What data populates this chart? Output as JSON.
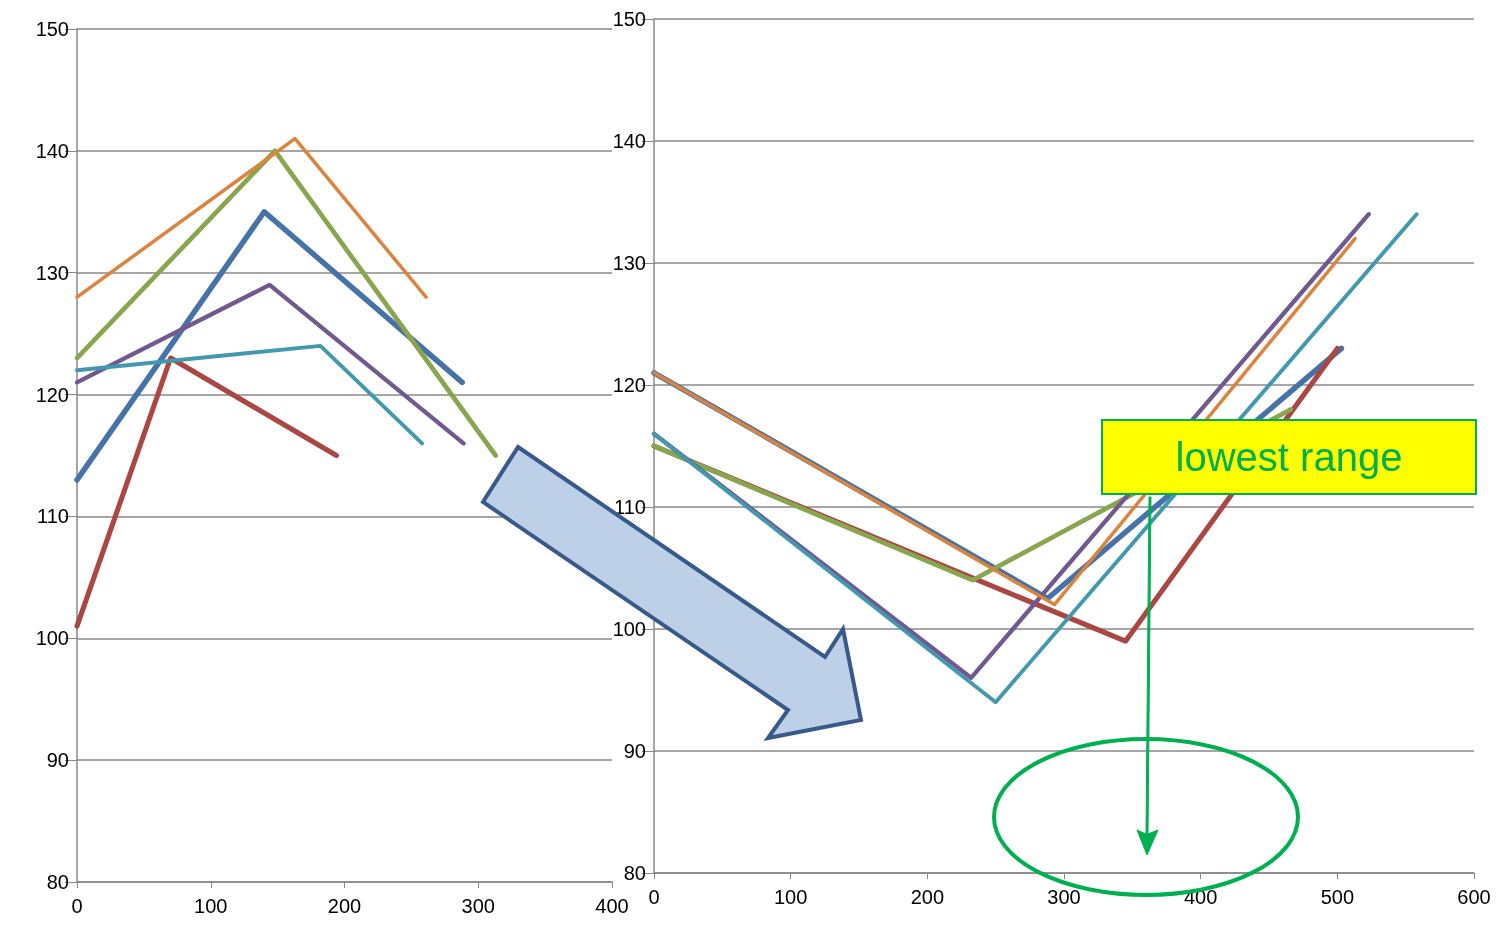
{
  "chart_data": [
    {
      "type": "line",
      "xlim": [
        0,
        400
      ],
      "xticks": [
        0,
        100,
        200,
        300,
        400
      ],
      "ylim": [
        80,
        150
      ],
      "yticks": [
        80,
        90,
        100,
        110,
        120,
        130,
        140,
        150
      ],
      "grid": "y",
      "marker": "none",
      "line_style": "solid",
      "series": [
        {
          "color": "#4572a7",
          "x": [
            0,
            140,
            288
          ],
          "values": [
            113,
            135,
            121
          ]
        },
        {
          "color": "#aa4643",
          "x": [
            0,
            70,
            194
          ],
          "values": [
            101,
            123,
            115
          ]
        },
        {
          "color": "#89a54e",
          "x": [
            0,
            148,
            313
          ],
          "values": [
            123,
            140,
            115
          ]
        },
        {
          "color": "#71588f",
          "x": [
            0,
            144,
            289
          ],
          "values": [
            121,
            129,
            116
          ]
        },
        {
          "color": "#4198af",
          "x": [
            0,
            182,
            258
          ],
          "values": [
            122,
            124,
            116
          ]
        },
        {
          "color": "#db843d",
          "x": [
            0,
            163,
            261
          ],
          "values": [
            128,
            141,
            128
          ]
        }
      ]
    },
    {
      "type": "line",
      "xlim": [
        0,
        600
      ],
      "xticks": [
        0,
        100,
        200,
        300,
        400,
        500,
        600
      ],
      "ylim": [
        80,
        150
      ],
      "yticks": [
        80,
        90,
        100,
        110,
        120,
        130,
        140,
        150
      ],
      "grid": "y",
      "marker": "none",
      "line_style": "solid",
      "annotations": [
        "lowest range"
      ],
      "series": [
        {
          "color": "#4572a7",
          "x": [
            0,
            288,
            503
          ],
          "values": [
            121,
            102.5,
            123
          ]
        },
        {
          "color": "#aa4643",
          "x": [
            0,
            345,
            500
          ],
          "values": [
            115,
            99,
            123
          ]
        },
        {
          "color": "#89a54e",
          "x": [
            0,
            233,
            466
          ],
          "values": [
            115,
            104,
            118
          ]
        },
        {
          "color": "#71588f",
          "x": [
            0,
            232,
            523
          ],
          "values": [
            116,
            96,
            134
          ]
        },
        {
          "color": "#4198af",
          "x": [
            0,
            250,
            558
          ],
          "values": [
            116,
            94,
            134
          ]
        },
        {
          "color": "#db843d",
          "x": [
            0,
            293,
            513
          ],
          "values": [
            121,
            102,
            132
          ]
        }
      ]
    }
  ]
}
